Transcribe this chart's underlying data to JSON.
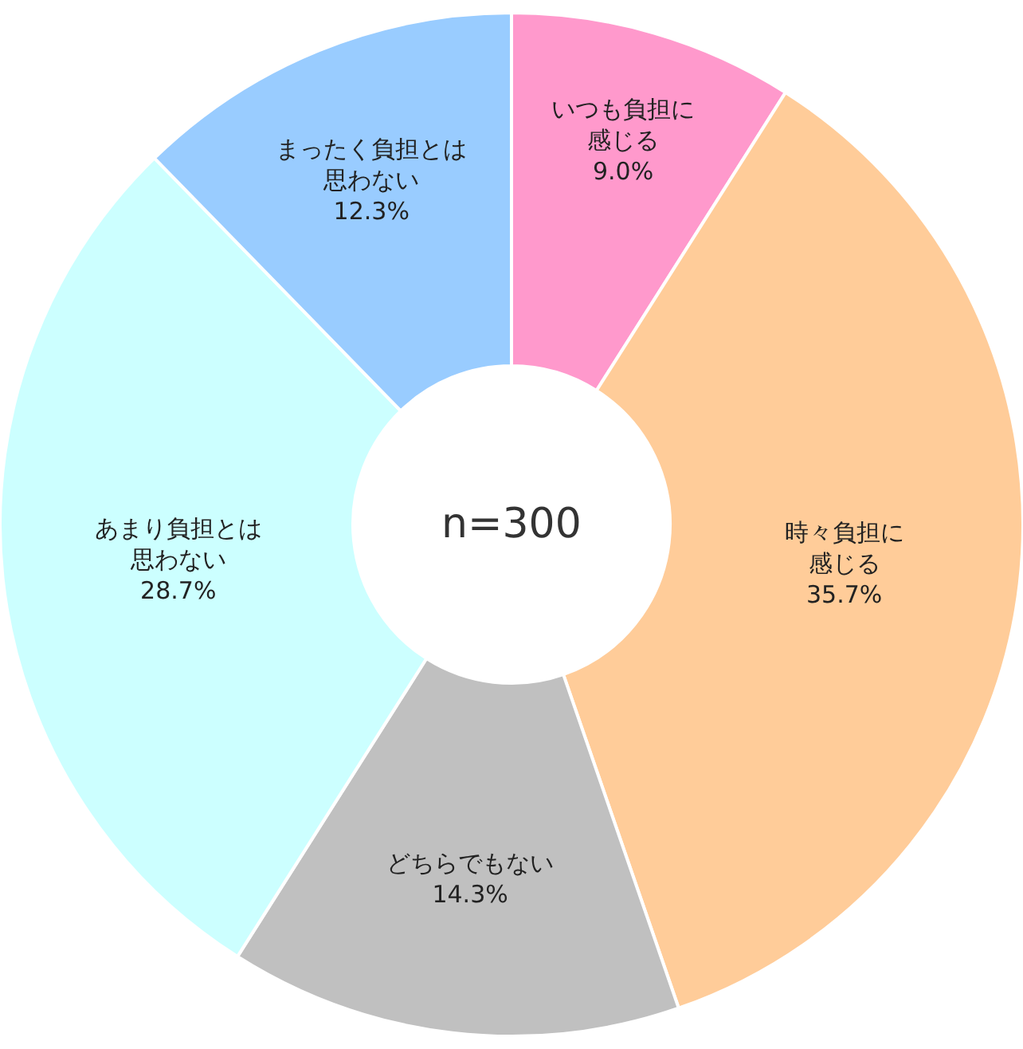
{
  "chart_data": {
    "type": "donut",
    "categories": [
      "いつも負担に感じる",
      "時々負担に感じる",
      "どちらでもない",
      "あまり負担とは思わない",
      "まったく負担とは思わない"
    ],
    "values": [
      9.0,
      35.7,
      14.3,
      28.7,
      12.3
    ],
    "value_labels": [
      "9.0%",
      "35.7%",
      "14.3%",
      "28.7%",
      "12.3%"
    ],
    "colors": [
      "#ff99cc",
      "#ffcc99",
      "#c0c0c0",
      "#ccffff",
      "#99ccff"
    ],
    "annotations": [
      "n=300"
    ],
    "legend": false
  }
}
